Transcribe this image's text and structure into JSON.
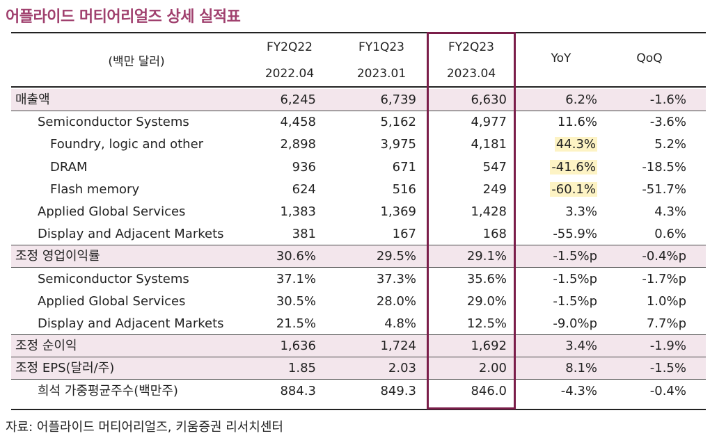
{
  "title": "어플라이드 머티어리얼즈 상세 실적표",
  "header": {
    "unit": "(백만 달러)",
    "periods": [
      {
        "label": "FY2Q22",
        "date": "2022.04"
      },
      {
        "label": "FY1Q23",
        "date": "2023.01"
      },
      {
        "label": "FY2Q23",
        "date": "2023.04"
      }
    ],
    "yoy": "YoY",
    "qoq": "QoQ"
  },
  "rows": [
    {
      "label": "매출액",
      "indent": 0,
      "shaded": true,
      "values": [
        "6,245",
        "6,739",
        "6,630",
        "6.2%",
        "-1.6%"
      ]
    },
    {
      "label": "Semiconductor Systems",
      "indent": 1,
      "shaded": false,
      "values": [
        "4,458",
        "5,162",
        "4,977",
        "11.6%",
        "-3.6%"
      ]
    },
    {
      "label": "Foundry, logic and other",
      "indent": 2,
      "shaded": false,
      "values": [
        "2,898",
        "3,975",
        "4,181",
        "44.3%",
        "5.2%"
      ],
      "highlight_yoy": true
    },
    {
      "label": "DRAM",
      "indent": 2,
      "shaded": false,
      "values": [
        "936",
        "671",
        "547",
        "-41.6%",
        "-18.5%"
      ],
      "highlight_yoy": true
    },
    {
      "label": "Flash memory",
      "indent": 2,
      "shaded": false,
      "values": [
        "624",
        "516",
        "249",
        "-60.1%",
        "-51.7%"
      ],
      "highlight_yoy": true
    },
    {
      "label": "Applied Global Services",
      "indent": 1,
      "shaded": false,
      "values": [
        "1,383",
        "1,369",
        "1,428",
        "3.3%",
        "4.3%"
      ]
    },
    {
      "label": "Display and Adjacent Markets",
      "indent": 1,
      "shaded": false,
      "values": [
        "381",
        "167",
        "168",
        "-55.9%",
        "0.6%"
      ]
    },
    {
      "label": "조정 영업이익률",
      "indent": 0,
      "shaded": true,
      "values": [
        "30.6%",
        "29.5%",
        "29.1%",
        "-1.5%p",
        "-0.4%p"
      ]
    },
    {
      "label": "Semiconductor Systems",
      "indent": 1,
      "shaded": false,
      "values": [
        "37.1%",
        "37.3%",
        "35.6%",
        "-1.5%p",
        "-1.7%p"
      ]
    },
    {
      "label": "Applied Global Services",
      "indent": 1,
      "shaded": false,
      "values": [
        "30.5%",
        "28.0%",
        "29.0%",
        "-1.5%p",
        "1.0%p"
      ]
    },
    {
      "label": "Display and Adjacent Markets",
      "indent": 1,
      "shaded": false,
      "values": [
        "21.5%",
        "4.8%",
        "12.5%",
        "-9.0%p",
        "7.7%p"
      ]
    },
    {
      "label": "조정 순이익",
      "indent": 0,
      "shaded": true,
      "values": [
        "1,636",
        "1,724",
        "1,692",
        "3.4%",
        "-1.9%"
      ]
    },
    {
      "label": "조정 EPS(달러/주)",
      "indent": 0,
      "shaded": true,
      "values": [
        "1.85",
        "2.03",
        "2.00",
        "8.1%",
        "-1.5%"
      ]
    },
    {
      "label": "희석 가중평균주수(백만주)",
      "indent": 1,
      "shaded": false,
      "values": [
        "884.3",
        "849.3",
        "846.0",
        "-4.3%",
        "-0.4%"
      ]
    }
  ],
  "source": "자료: 어플라이드 머티어리얼즈, 키움증권 리서치센터",
  "colors": {
    "title": "#a0406e",
    "shade": "#f3e6ec",
    "highlight_border": "#7b1e4a",
    "yoy_highlight": "#fdf3c4"
  }
}
